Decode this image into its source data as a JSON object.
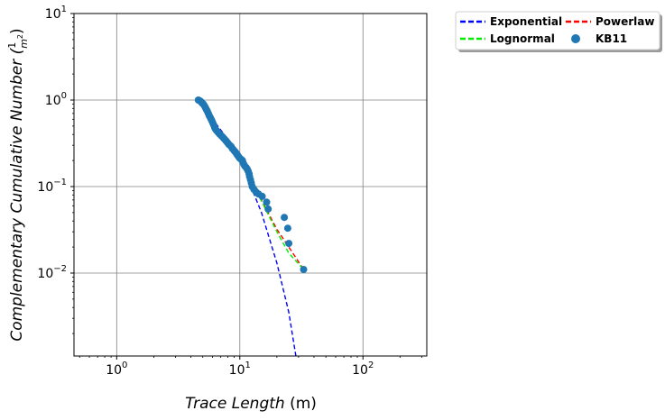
{
  "chart_data": {
    "type": "scatter",
    "xscale": "log",
    "yscale": "log",
    "xlim": [
      0.45,
      330
    ],
    "ylim": [
      0.0011,
      10
    ],
    "grid": true,
    "legend_position": "outside-top-right",
    "xlabel": "Trace Length (m)",
    "xlabel_main": "Trace Length ",
    "xlabel_unit": "(m)",
    "ylabel": "Complementary Cumulative Number (1/m²)",
    "ylabel_main": "Complementary Cumulative Number (",
    "ylabel_num": "1",
    "ylabel_den": "m",
    "ylabel_den_exp": "2",
    "ylabel_close": ")",
    "x_ticks": [
      {
        "value": 1,
        "base": "10",
        "exp": "0"
      },
      {
        "value": 10,
        "base": "10",
        "exp": "1"
      },
      {
        "value": 100,
        "base": "10",
        "exp": "2"
      }
    ],
    "y_ticks": [
      {
        "value": 0.01,
        "base": "10",
        "exp": "−2"
      },
      {
        "value": 0.1,
        "base": "10",
        "exp": "−1"
      },
      {
        "value": 1,
        "base": "10",
        "exp": "0"
      },
      {
        "value": 10,
        "base": "10",
        "exp": "1"
      }
    ],
    "legend": [
      {
        "label": "Exponential",
        "color": "#0000ff",
        "style": "dashed"
      },
      {
        "label": "Powerlaw",
        "color": "#ff0000",
        "style": "dashed"
      },
      {
        "label": "Lognormal",
        "color": "#00ee00",
        "style": "dashed"
      },
      {
        "label": "KB11",
        "color": "#1f77b4",
        "style": "marker"
      }
    ],
    "series": [
      {
        "name": "KB11",
        "kind": "scatter",
        "color": "#1f77b4",
        "points": [
          [
            4.6,
            1.0
          ],
          [
            4.75,
            0.975
          ],
          [
            4.85,
            0.95
          ],
          [
            4.95,
            0.92
          ],
          [
            5.05,
            0.9
          ],
          [
            5.15,
            0.86
          ],
          [
            5.25,
            0.82
          ],
          [
            5.35,
            0.78
          ],
          [
            5.45,
            0.74
          ],
          [
            5.55,
            0.7
          ],
          [
            5.65,
            0.66
          ],
          [
            5.75,
            0.63
          ],
          [
            5.85,
            0.6
          ],
          [
            5.95,
            0.57
          ],
          [
            6.05,
            0.54
          ],
          [
            6.15,
            0.51
          ],
          [
            6.25,
            0.48
          ],
          [
            6.35,
            0.46
          ],
          [
            6.5,
            0.44
          ],
          [
            6.7,
            0.42
          ],
          [
            6.9,
            0.4
          ],
          [
            7.1,
            0.385
          ],
          [
            7.3,
            0.37
          ],
          [
            7.5,
            0.355
          ],
          [
            7.7,
            0.34
          ],
          [
            7.9,
            0.325
          ],
          [
            8.1,
            0.31
          ],
          [
            8.3,
            0.3
          ],
          [
            8.5,
            0.29
          ],
          [
            8.7,
            0.275
          ],
          [
            8.9,
            0.265
          ],
          [
            9.1,
            0.255
          ],
          [
            9.3,
            0.245
          ],
          [
            9.5,
            0.235
          ],
          [
            9.7,
            0.225
          ],
          [
            9.9,
            0.215
          ],
          [
            10.1,
            0.21
          ],
          [
            10.3,
            0.205
          ],
          [
            10.5,
            0.2
          ],
          [
            10.6,
            0.19
          ],
          [
            10.8,
            0.18
          ],
          [
            11.0,
            0.172
          ],
          [
            11.3,
            0.165
          ],
          [
            11.5,
            0.158
          ],
          [
            11.7,
            0.15
          ],
          [
            11.9,
            0.14
          ],
          [
            12.0,
            0.13
          ],
          [
            12.2,
            0.12
          ],
          [
            12.4,
            0.11
          ],
          [
            12.6,
            0.1
          ],
          [
            13.0,
            0.093
          ],
          [
            13.5,
            0.087
          ],
          [
            14.2,
            0.082
          ],
          [
            15.2,
            0.077
          ],
          [
            16.5,
            0.066
          ],
          [
            17.0,
            0.055
          ],
          [
            23.0,
            0.044
          ],
          [
            24.5,
            0.033
          ],
          [
            25.0,
            0.022
          ],
          [
            33.0,
            0.011
          ]
        ]
      },
      {
        "name": "Exponential",
        "kind": "line",
        "color": "#0000ff",
        "style": "dashed",
        "points": [
          [
            4.6,
            1.0
          ],
          [
            8,
            0.35
          ],
          [
            10,
            0.24
          ],
          [
            12,
            0.11
          ],
          [
            15,
            0.05
          ],
          [
            20,
            0.013
          ],
          [
            25,
            0.0035
          ],
          [
            28.5,
            0.0011
          ]
        ]
      },
      {
        "name": "Powerlaw",
        "kind": "line",
        "color": "#ff0000",
        "style": "dashed",
        "points": [
          [
            4.6,
            1.0
          ],
          [
            10,
            0.2
          ],
          [
            15,
            0.07
          ],
          [
            20,
            0.032
          ],
          [
            25,
            0.02
          ],
          [
            33,
            0.011
          ]
        ]
      },
      {
        "name": "Lognormal",
        "kind": "line",
        "color": "#00ee00",
        "style": "dashed",
        "points": [
          [
            4.6,
            1.0
          ],
          [
            10,
            0.2
          ],
          [
            15,
            0.068
          ],
          [
            20,
            0.03
          ],
          [
            25,
            0.017
          ],
          [
            33,
            0.011
          ]
        ]
      }
    ]
  }
}
